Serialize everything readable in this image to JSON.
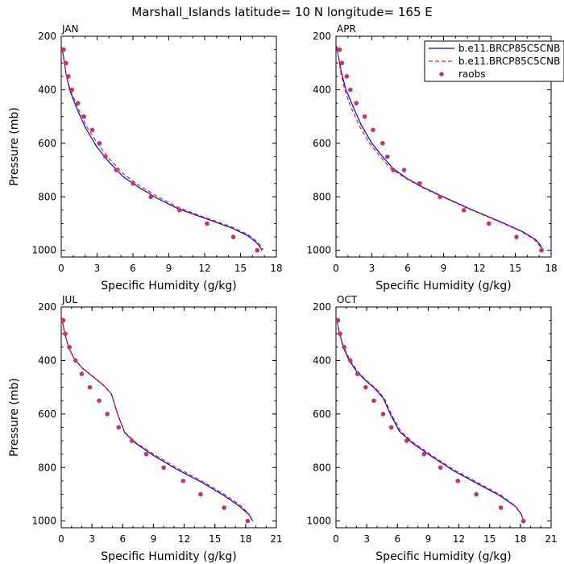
{
  "figure": {
    "title": "Marshall_Islands  latitude= 10 N longitude= 165 E"
  },
  "legend": {
    "position": "top-right",
    "entries": [
      {
        "label": "b.e11.BRCP85C5CNB",
        "color": "#0000ff",
        "dash": "solid"
      },
      {
        "label": "b.e11.BRCP85C5CNB",
        "color": "#dd2222",
        "dash": "dashed"
      },
      {
        "label": "raobs",
        "color": "#c0395f",
        "marker": "dot"
      }
    ]
  },
  "chart_data": [
    {
      "type": "line",
      "panel_title": "JAN",
      "xlabel": "Specific Humidity (g/kg)",
      "ylabel": "Pressure (mb)",
      "xlim": [
        0,
        18
      ],
      "ylim": [
        1025,
        200
      ],
      "xticks": [
        0,
        3,
        6,
        9,
        12,
        15,
        18
      ],
      "yticks": [
        200,
        400,
        600,
        800,
        1000
      ],
      "series": [
        {
          "name": "b.e11.BRCP85C5CNB",
          "color": "#0000ff",
          "dash": "solid",
          "x": [
            0.05,
            0.2,
            0.4,
            0.7,
            1.3,
            2.0,
            3.0,
            4.0,
            5.2,
            6.5,
            8.0,
            9.8,
            12.0,
            14.2,
            15.6,
            16.3,
            16.6,
            16.8
          ],
          "y": [
            240,
            280,
            340,
            400,
            470,
            540,
            615,
            670,
            725,
            765,
            805,
            845,
            880,
            915,
            945,
            970,
            985,
            1000
          ]
        },
        {
          "name": "b.e11.BRCP85C5CNB",
          "color": "#dd2222",
          "dash": "dashed",
          "x": [
            0.05,
            0.2,
            0.4,
            0.75,
            1.4,
            2.1,
            3.1,
            4.1,
            5.3,
            6.6,
            8.1,
            9.9,
            12.1,
            14.3,
            15.7,
            16.4,
            16.7,
            16.9
          ],
          "y": [
            240,
            280,
            340,
            400,
            468,
            535,
            605,
            662,
            718,
            760,
            800,
            842,
            878,
            913,
            943,
            968,
            983,
            998
          ]
        },
        {
          "name": "raobs",
          "color": "#c0395f",
          "marker": "dot",
          "x": [
            0.2,
            0.4,
            0.6,
            0.9,
            1.4,
            1.9,
            2.6,
            3.2,
            3.7,
            4.6,
            6.0,
            7.5,
            9.9,
            12.2,
            14.4,
            16.4
          ],
          "y": [
            250,
            300,
            350,
            400,
            450,
            500,
            550,
            600,
            650,
            700,
            750,
            800,
            850,
            900,
            950,
            1000
          ]
        }
      ]
    },
    {
      "type": "line",
      "panel_title": "APR",
      "xlabel": "Specific Humidity (g/kg)",
      "ylabel": "",
      "xlim": [
        0,
        18
      ],
      "ylim": [
        1025,
        200
      ],
      "xticks": [
        0,
        3,
        6,
        9,
        12,
        15,
        18
      ],
      "yticks": [
        200,
        400,
        600,
        800,
        1000
      ],
      "series": [
        {
          "name": "b.e11.BRCP85C5CNB",
          "color": "#0000ff",
          "dash": "solid",
          "x": [
            0.05,
            0.2,
            0.45,
            0.8,
            1.4,
            2.1,
            3.0,
            3.9,
            4.8,
            5.9,
            7.3,
            9.0,
            11.2,
            13.6,
            15.6,
            16.7,
            17.1,
            17.3
          ],
          "y": [
            235,
            275,
            335,
            395,
            460,
            530,
            600,
            650,
            695,
            730,
            765,
            800,
            845,
            890,
            930,
            960,
            980,
            1000
          ]
        },
        {
          "name": "b.e11.BRCP85C5CNB",
          "color": "#dd2222",
          "dash": "dashed",
          "x": [
            0.05,
            0.2,
            0.4,
            0.7,
            1.2,
            1.9,
            2.8,
            3.7,
            4.6,
            5.8,
            7.2,
            8.9,
            11.1,
            13.5,
            15.5,
            16.6,
            17.0,
            17.2
          ],
          "y": [
            235,
            275,
            335,
            395,
            460,
            530,
            600,
            650,
            695,
            730,
            765,
            800,
            845,
            890,
            930,
            960,
            980,
            1000
          ]
        },
        {
          "name": "raobs",
          "color": "#c0395f",
          "marker": "dot",
          "x": [
            0.3,
            0.5,
            0.9,
            1.2,
            1.7,
            2.4,
            3.1,
            3.9,
            4.3,
            4.8,
            5.7,
            7.0,
            8.7,
            10.7,
            12.8,
            15.1,
            17.2
          ],
          "y": [
            250,
            300,
            350,
            400,
            450,
            500,
            550,
            600,
            650,
            700,
            700,
            750,
            800,
            850,
            900,
            950,
            1000
          ]
        }
      ]
    },
    {
      "type": "line",
      "panel_title": "JUL",
      "xlabel": "Specific Humidity (g/kg)",
      "ylabel": "Pressure (mb)",
      "xlim": [
        0,
        21
      ],
      "ylim": [
        1025,
        200
      ],
      "xticks": [
        0,
        3,
        6,
        9,
        12,
        15,
        18,
        21
      ],
      "yticks": [
        200,
        400,
        600,
        800,
        1000
      ],
      "series": [
        {
          "name": "b.e11.BRCP85C5CNB",
          "color": "#0000ff",
          "dash": "solid",
          "x": [
            0.05,
            0.3,
            0.7,
            1.3,
            2.1,
            3.1,
            4.2,
            4.9,
            5.5,
            6.2,
            7.3,
            9.0,
            11.2,
            13.7,
            15.9,
            17.4,
            18.3,
            18.7
          ],
          "y": [
            240,
            290,
            350,
            395,
            430,
            460,
            495,
            525,
            600,
            670,
            710,
            755,
            805,
            855,
            905,
            945,
            975,
            1000
          ]
        },
        {
          "name": "b.e11.BRCP85C5CNB",
          "color": "#dd2222",
          "dash": "dashed",
          "x": [
            0.05,
            0.3,
            0.7,
            1.3,
            2.1,
            3.1,
            4.2,
            4.9,
            5.5,
            6.2,
            7.3,
            9.1,
            11.3,
            13.8,
            16.0,
            17.5,
            18.3,
            18.6
          ],
          "y": [
            240,
            290,
            350,
            395,
            430,
            460,
            495,
            525,
            600,
            668,
            707,
            752,
            802,
            852,
            902,
            942,
            972,
            997
          ]
        },
        {
          "name": "raobs",
          "color": "#c0395f",
          "marker": "dot",
          "x": [
            0.2,
            0.4,
            0.8,
            1.4,
            2.0,
            2.8,
            3.7,
            4.5,
            5.6,
            6.9,
            8.3,
            10.0,
            11.9,
            13.6,
            15.9,
            18.2
          ],
          "y": [
            250,
            300,
            350,
            400,
            450,
            500,
            550,
            600,
            650,
            700,
            750,
            800,
            850,
            900,
            950,
            1000
          ]
        }
      ]
    },
    {
      "type": "line",
      "panel_title": "OCT",
      "xlabel": "Specific Humidity (g/kg)",
      "ylabel": "",
      "xlim": [
        0,
        21
      ],
      "ylim": [
        1025,
        200
      ],
      "xticks": [
        0,
        3,
        6,
        9,
        12,
        15,
        18,
        21
      ],
      "yticks": [
        200,
        400,
        600,
        800,
        1000
      ],
      "series": [
        {
          "name": "b.e11.BRCP85C5CNB",
          "color": "#0000ff",
          "dash": "solid",
          "x": [
            0.05,
            0.3,
            0.7,
            1.3,
            2.0,
            2.9,
            3.8,
            4.6,
            5.3,
            6.2,
            7.5,
            9.2,
            11.4,
            13.8,
            16.0,
            17.5,
            18.1,
            18.3
          ],
          "y": [
            240,
            290,
            350,
            400,
            440,
            475,
            505,
            540,
            600,
            665,
            710,
            755,
            810,
            860,
            905,
            945,
            975,
            1000
          ]
        },
        {
          "name": "b.e11.BRCP85C5CNB",
          "color": "#dd2222",
          "dash": "dashed",
          "x": [
            0.05,
            0.3,
            0.75,
            1.4,
            2.1,
            3.0,
            3.9,
            4.7,
            5.4,
            6.3,
            7.6,
            9.3,
            11.5,
            13.9,
            16.1,
            17.5,
            18.1,
            18.3
          ],
          "y": [
            240,
            290,
            350,
            400,
            440,
            475,
            505,
            540,
            600,
            663,
            708,
            753,
            808,
            858,
            903,
            943,
            973,
            998
          ]
        },
        {
          "name": "raobs",
          "color": "#c0395f",
          "marker": "dot",
          "x": [
            0.2,
            0.4,
            0.8,
            1.4,
            2.1,
            2.9,
            3.7,
            4.6,
            5.4,
            6.9,
            8.6,
            10.2,
            11.9,
            13.7,
            16.1,
            18.3
          ],
          "y": [
            250,
            300,
            350,
            400,
            450,
            500,
            550,
            600,
            650,
            700,
            750,
            800,
            850,
            900,
            950,
            1000
          ]
        }
      ]
    }
  ]
}
